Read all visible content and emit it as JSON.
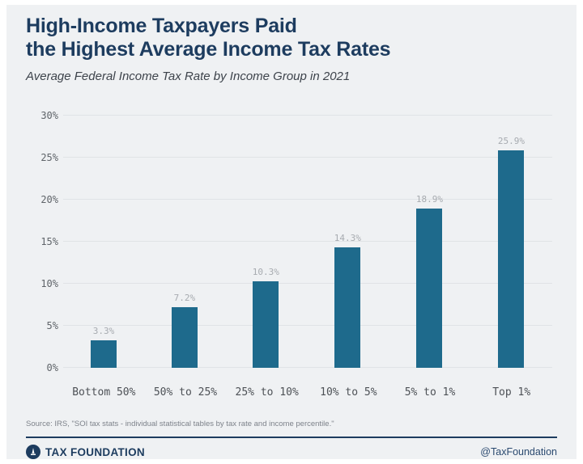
{
  "header": {
    "title_line1": "High-Income Taxpayers Paid",
    "title_line2": "the Highest Average Income Tax Rates",
    "subtitle": "Average Federal Income Tax Rate by Income Group in 2021"
  },
  "chart_data": {
    "type": "bar",
    "title": "Average Federal Income Tax Rate by Income Group in 2021",
    "categories": [
      "Bottom 50%",
      "50% to 25%",
      "25% to 10%",
      "10% to 5%",
      "5% to 1%",
      "Top 1%"
    ],
    "values": [
      3.3,
      7.2,
      10.3,
      14.3,
      18.9,
      25.9
    ],
    "value_labels": [
      "3.3%",
      "7.2%",
      "10.3%",
      "14.3%",
      "18.9%",
      "25.9%"
    ],
    "xlabel": "",
    "ylabel": "",
    "ylim": [
      0,
      30
    ],
    "ytick_step": 5,
    "ytick_labels": [
      "0%",
      "5%",
      "10%",
      "15%",
      "20%",
      "25%",
      "30%"
    ],
    "grid": true,
    "legend": "none",
    "bar_color": "#1e6a8c",
    "gridline_color": "#e0e3e6"
  },
  "footer": {
    "source": "Source: IRS, \"SOI tax stats - individual statistical tables by tax rate and income percentile.\"",
    "brand": "TAX FOUNDATION",
    "handle": "@TaxFoundation",
    "logo_icon": "tax-foundation-monument",
    "brand_navy": "#1d3c5f"
  }
}
